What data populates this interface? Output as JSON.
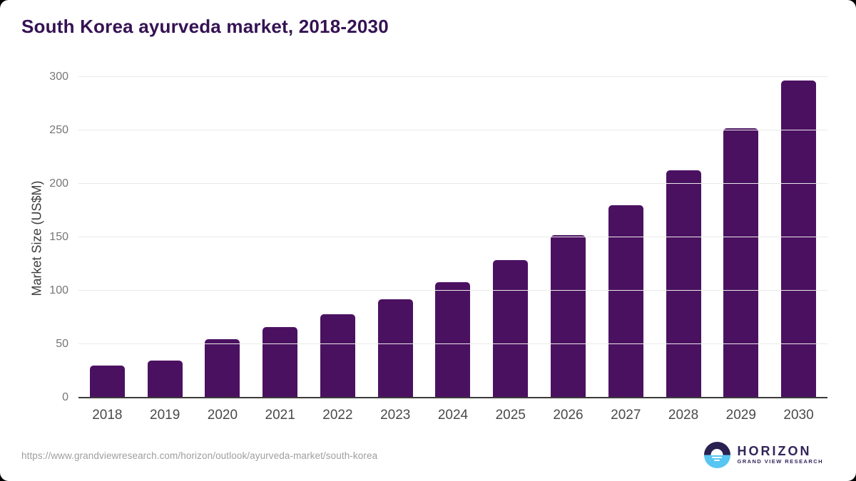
{
  "header": {
    "title": "South Korea ayurveda market, 2018-2030"
  },
  "chart_data": {
    "type": "bar",
    "title": "South Korea ayurveda market, 2018-2030",
    "categories": [
      "2018",
      "2019",
      "2020",
      "2021",
      "2022",
      "2023",
      "2024",
      "2025",
      "2026",
      "2027",
      "2028",
      "2029",
      "2030"
    ],
    "values": [
      30,
      35,
      55,
      66,
      78,
      92,
      108,
      129,
      152,
      180,
      213,
      252,
      297
    ],
    "xlabel": "",
    "ylabel": "Market Size (US$M)",
    "ylim": [
      0,
      300
    ],
    "y_ticks": [
      0,
      50,
      100,
      150,
      200,
      250,
      300
    ],
    "grid": "horizontal-only",
    "legend": "none",
    "bar_color": "#4B1161"
  },
  "colors": {
    "bar": "#4B1161",
    "title": "#351253",
    "gridline": "#e9e9e9",
    "axis_line": "#3a3a3a",
    "y_tick": "#767676",
    "x_tick": "#4a4a4a",
    "y_axis_label": "#3d3d3d",
    "source_url": "#9e9e9e",
    "logo_dark_half": "#2A2150",
    "logo_light_half": "#57C6F2",
    "logo_text": "#332459"
  },
  "footer": {
    "source_url": "https://www.grandviewresearch.com/horizon/outlook/ayurveda-market/south-korea",
    "logo": {
      "name": "HORIZON",
      "subtitle": "GRAND VIEW RESEARCH",
      "icon": "sunset-over-water-icon"
    }
  }
}
